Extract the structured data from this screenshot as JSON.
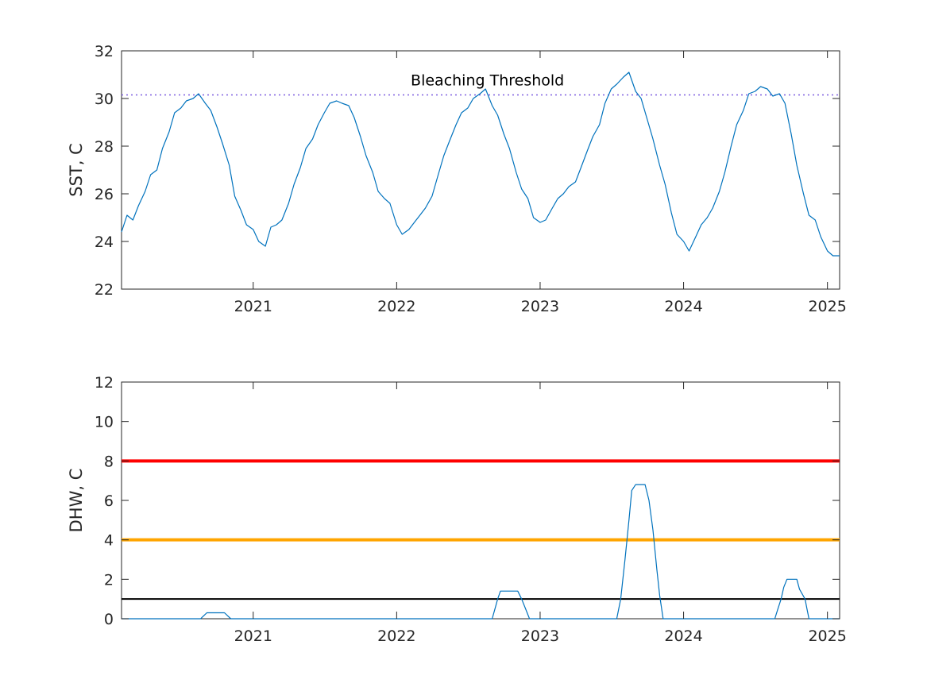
{
  "chart_data": [
    {
      "type": "line",
      "ylabel": "SST, C",
      "xlabel": "",
      "xlim": [
        "2020-02-01",
        "2025-02-01"
      ],
      "ylim": [
        22,
        32
      ],
      "yticks": [
        22,
        24,
        26,
        28,
        30,
        32
      ],
      "xticks": [
        {
          "date": "2021-01-01",
          "label": "2021"
        },
        {
          "date": "2022-01-01",
          "label": "2022"
        },
        {
          "date": "2023-01-01",
          "label": "2023"
        },
        {
          "date": "2024-01-01",
          "label": "2024"
        },
        {
          "date": "2025-01-01",
          "label": "2025"
        }
      ],
      "reference_lines": [
        {
          "y": 30.15,
          "style": "dotted",
          "color": "#7e5ee0"
        }
      ],
      "annotations": [
        {
          "text": "Bleaching Threshold",
          "date": "2022-08-20",
          "y": 30.55
        }
      ],
      "series": [
        {
          "color": "#0072bd",
          "points": [
            [
              "2020-02-01",
              24.4
            ],
            [
              "2020-02-15",
              25.1
            ],
            [
              "2020-03-01",
              24.9
            ],
            [
              "2020-03-15",
              25.5
            ],
            [
              "2020-04-01",
              26.1
            ],
            [
              "2020-04-15",
              26.8
            ],
            [
              "2020-05-01",
              27.0
            ],
            [
              "2020-05-15",
              27.9
            ],
            [
              "2020-06-01",
              28.6
            ],
            [
              "2020-06-15",
              29.4
            ],
            [
              "2020-07-01",
              29.6
            ],
            [
              "2020-07-15",
              29.9
            ],
            [
              "2020-08-01",
              30.0
            ],
            [
              "2020-08-15",
              30.2
            ],
            [
              "2020-09-01",
              29.8
            ],
            [
              "2020-09-15",
              29.5
            ],
            [
              "2020-10-01",
              28.8
            ],
            [
              "2020-10-15",
              28.1
            ],
            [
              "2020-11-01",
              27.2
            ],
            [
              "2020-11-15",
              25.9
            ],
            [
              "2020-12-01",
              25.3
            ],
            [
              "2020-12-15",
              24.7
            ],
            [
              "2021-01-01",
              24.5
            ],
            [
              "2021-01-15",
              24.0
            ],
            [
              "2021-02-01",
              23.8
            ],
            [
              "2021-02-15",
              24.6
            ],
            [
              "2021-03-01",
              24.7
            ],
            [
              "2021-03-15",
              24.9
            ],
            [
              "2021-04-01",
              25.6
            ],
            [
              "2021-04-15",
              26.4
            ],
            [
              "2021-05-01",
              27.1
            ],
            [
              "2021-05-15",
              27.9
            ],
            [
              "2021-06-01",
              28.3
            ],
            [
              "2021-06-15",
              28.9
            ],
            [
              "2021-07-01",
              29.4
            ],
            [
              "2021-07-15",
              29.8
            ],
            [
              "2021-08-01",
              29.9
            ],
            [
              "2021-08-15",
              29.8
            ],
            [
              "2021-09-01",
              29.7
            ],
            [
              "2021-09-15",
              29.2
            ],
            [
              "2021-10-01",
              28.4
            ],
            [
              "2021-10-15",
              27.6
            ],
            [
              "2021-11-01",
              26.9
            ],
            [
              "2021-11-15",
              26.1
            ],
            [
              "2021-12-01",
              25.8
            ],
            [
              "2021-12-15",
              25.6
            ],
            [
              "2022-01-01",
              24.7
            ],
            [
              "2022-01-15",
              24.3
            ],
            [
              "2022-02-01",
              24.5
            ],
            [
              "2022-02-15",
              24.8
            ],
            [
              "2022-03-01",
              25.1
            ],
            [
              "2022-03-15",
              25.4
            ],
            [
              "2022-04-01",
              25.9
            ],
            [
              "2022-04-15",
              26.7
            ],
            [
              "2022-05-01",
              27.6
            ],
            [
              "2022-05-15",
              28.2
            ],
            [
              "2022-06-01",
              28.9
            ],
            [
              "2022-06-15",
              29.4
            ],
            [
              "2022-07-01",
              29.6
            ],
            [
              "2022-07-15",
              30.0
            ],
            [
              "2022-08-01",
              30.2
            ],
            [
              "2022-08-15",
              30.4
            ],
            [
              "2022-09-01",
              29.7
            ],
            [
              "2022-09-15",
              29.3
            ],
            [
              "2022-10-01",
              28.5
            ],
            [
              "2022-10-15",
              27.9
            ],
            [
              "2022-11-01",
              26.9
            ],
            [
              "2022-11-15",
              26.2
            ],
            [
              "2022-12-01",
              25.8
            ],
            [
              "2022-12-15",
              25.0
            ],
            [
              "2023-01-01",
              24.8
            ],
            [
              "2023-01-15",
              24.9
            ],
            [
              "2023-02-01",
              25.4
            ],
            [
              "2023-02-15",
              25.8
            ],
            [
              "2023-03-01",
              26.0
            ],
            [
              "2023-03-15",
              26.3
            ],
            [
              "2023-04-01",
              26.5
            ],
            [
              "2023-04-15",
              27.1
            ],
            [
              "2023-05-01",
              27.8
            ],
            [
              "2023-05-15",
              28.4
            ],
            [
              "2023-06-01",
              28.9
            ],
            [
              "2023-06-15",
              29.8
            ],
            [
              "2023-07-01",
              30.4
            ],
            [
              "2023-07-15",
              30.6
            ],
            [
              "2023-08-01",
              30.9
            ],
            [
              "2023-08-15",
              31.1
            ],
            [
              "2023-09-01",
              30.3
            ],
            [
              "2023-09-15",
              30.0
            ],
            [
              "2023-10-01",
              29.1
            ],
            [
              "2023-10-15",
              28.3
            ],
            [
              "2023-11-01",
              27.2
            ],
            [
              "2023-11-15",
              26.4
            ],
            [
              "2023-12-01",
              25.2
            ],
            [
              "2023-12-15",
              24.3
            ],
            [
              "2024-01-01",
              24.0
            ],
            [
              "2024-01-15",
              23.6
            ],
            [
              "2024-02-01",
              24.2
            ],
            [
              "2024-02-15",
              24.7
            ],
            [
              "2024-03-01",
              25.0
            ],
            [
              "2024-03-15",
              25.4
            ],
            [
              "2024-04-01",
              26.1
            ],
            [
              "2024-04-15",
              26.9
            ],
            [
              "2024-05-01",
              28.0
            ],
            [
              "2024-05-15",
              28.9
            ],
            [
              "2024-06-01",
              29.5
            ],
            [
              "2024-06-15",
              30.2
            ],
            [
              "2024-07-01",
              30.3
            ],
            [
              "2024-07-15",
              30.5
            ],
            [
              "2024-08-01",
              30.4
            ],
            [
              "2024-08-15",
              30.1
            ],
            [
              "2024-09-01",
              30.2
            ],
            [
              "2024-09-15",
              29.8
            ],
            [
              "2024-10-01",
              28.5
            ],
            [
              "2024-10-15",
              27.2
            ],
            [
              "2024-11-01",
              26.0
            ],
            [
              "2024-11-15",
              25.1
            ],
            [
              "2024-12-01",
              24.9
            ],
            [
              "2024-12-15",
              24.2
            ],
            [
              "2025-01-01",
              23.6
            ],
            [
              "2025-01-15",
              23.4
            ],
            [
              "2025-02-01",
              23.4
            ]
          ]
        }
      ]
    },
    {
      "type": "line",
      "ylabel": "DHW, C",
      "xlabel": "",
      "xlim": [
        "2020-02-01",
        "2025-02-01"
      ],
      "ylim": [
        0,
        12
      ],
      "yticks": [
        0,
        2,
        4,
        6,
        8,
        10,
        12
      ],
      "xticks": [
        {
          "date": "2021-01-01",
          "label": "2021"
        },
        {
          "date": "2022-01-01",
          "label": "2022"
        },
        {
          "date": "2023-01-01",
          "label": "2023"
        },
        {
          "date": "2024-01-01",
          "label": "2024"
        },
        {
          "date": "2025-01-01",
          "label": "2025"
        }
      ],
      "reference_lines": [
        {
          "y": 8,
          "style": "solid",
          "color": "#ff0000"
        },
        {
          "y": 4,
          "style": "solid",
          "color": "#ffa500"
        },
        {
          "y": 1,
          "style": "solid",
          "color": "#000000"
        }
      ],
      "series": [
        {
          "color": "#0072bd",
          "points": [
            [
              "2020-02-01",
              0
            ],
            [
              "2020-08-20",
              0
            ],
            [
              "2020-08-28",
              0.15
            ],
            [
              "2020-09-05",
              0.3
            ],
            [
              "2020-10-20",
              0.3
            ],
            [
              "2020-10-28",
              0.15
            ],
            [
              "2020-11-05",
              0
            ],
            [
              "2022-09-01",
              0
            ],
            [
              "2022-09-08",
              0.5
            ],
            [
              "2022-09-15",
              1.0
            ],
            [
              "2022-09-22",
              1.4
            ],
            [
              "2022-11-05",
              1.4
            ],
            [
              "2022-11-15",
              1.0
            ],
            [
              "2022-11-25",
              0.5
            ],
            [
              "2022-12-05",
              0
            ],
            [
              "2023-07-15",
              0
            ],
            [
              "2023-07-25",
              1.0
            ],
            [
              "2023-08-05",
              3.0
            ],
            [
              "2023-08-15",
              5.0
            ],
            [
              "2023-08-22",
              6.5
            ],
            [
              "2023-09-01",
              6.8
            ],
            [
              "2023-09-25",
              6.8
            ],
            [
              "2023-10-05",
              6.0
            ],
            [
              "2023-10-15",
              4.5
            ],
            [
              "2023-10-25",
              2.5
            ],
            [
              "2023-11-01",
              1.2
            ],
            [
              "2023-11-10",
              0
            ],
            [
              "2024-08-20",
              0
            ],
            [
              "2024-08-28",
              0.5
            ],
            [
              "2024-09-05",
              1.0
            ],
            [
              "2024-09-12",
              1.6
            ],
            [
              "2024-09-20",
              2.0
            ],
            [
              "2024-10-15",
              2.0
            ],
            [
              "2024-10-22",
              1.5
            ],
            [
              "2024-11-05",
              1.0
            ],
            [
              "2024-11-10",
              0.5
            ],
            [
              "2024-11-15",
              0
            ],
            [
              "2025-02-01",
              0
            ]
          ]
        }
      ]
    }
  ]
}
